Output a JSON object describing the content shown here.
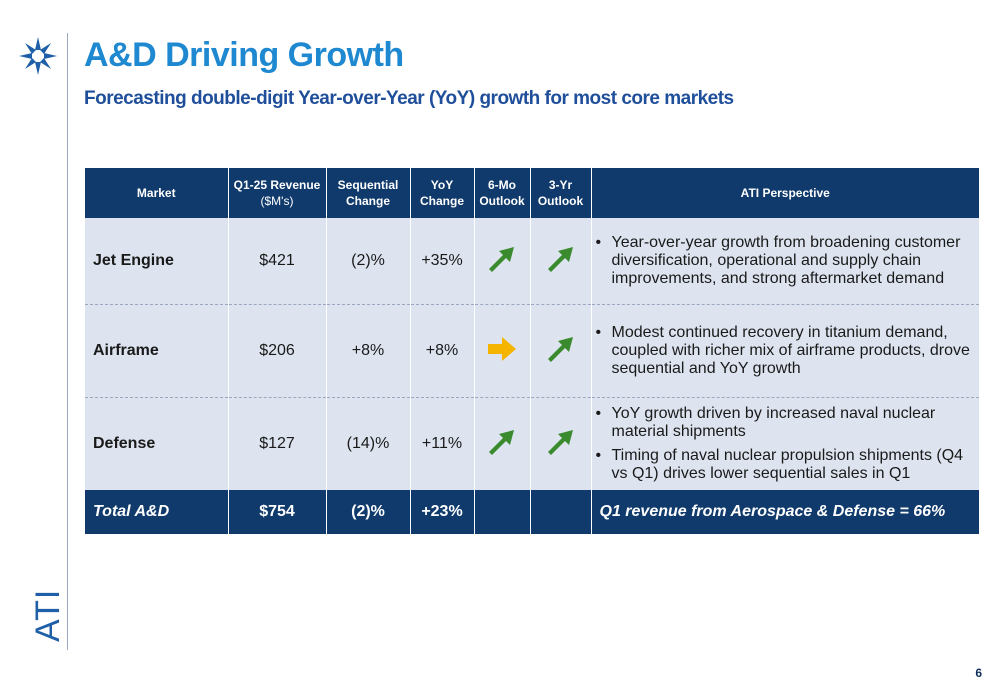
{
  "header": {
    "title": "A&D Driving Growth",
    "subtitle": "Forecasting double-digit Year-over-Year (YoY) growth for most core markets"
  },
  "branding": {
    "logo": "ATI",
    "accent": "#1e88d0",
    "navy": "#0f3a6b"
  },
  "table": {
    "headers": {
      "market": "Market",
      "revenue": "Q1-25 Revenue",
      "revenue_unit": "($M's)",
      "sequential_1": "Sequential",
      "sequential_2": "Change",
      "yoy_1": "YoY",
      "yoy_2": "Change",
      "six_mo_1": "6-Mo",
      "six_mo_2": "Outlook",
      "three_yr_1": "3-Yr",
      "three_yr_2": "Outlook",
      "perspective": "ATI Perspective"
    },
    "rows": [
      {
        "market": "Jet Engine",
        "revenue": "$421",
        "sequential": "(2)%",
        "yoy": "+35%",
        "six_mo_outlook": "up-right-arrow",
        "three_yr_outlook": "up-right-arrow",
        "perspective": [
          "Year-over-year growth from broadening customer diversification, operational and supply chain improvements, and strong aftermarket demand"
        ]
      },
      {
        "market": "Airframe",
        "revenue": "$206",
        "sequential": "+8%",
        "yoy": "+8%",
        "six_mo_outlook": "right-arrow",
        "three_yr_outlook": "up-right-arrow",
        "perspective": [
          "Modest continued recovery in titanium demand, coupled with richer mix of airframe products, drove sequential and YoY growth"
        ]
      },
      {
        "market": "Defense",
        "revenue": "$127",
        "sequential": "(14)%",
        "yoy": "+11%",
        "six_mo_outlook": "up-right-arrow",
        "three_yr_outlook": "up-right-arrow",
        "perspective": [
          "YoY growth driven by increased naval nuclear material shipments",
          "Timing of naval nuclear propulsion shipments (Q4 vs Q1) drives lower sequential sales in Q1"
        ]
      }
    ],
    "total": {
      "market": "Total A&D",
      "revenue": "$754",
      "sequential": "(2)%",
      "yoy": "+23%",
      "note": "Q1 revenue from Aerospace & Defense = 66%"
    },
    "colors": {
      "up": "#3a8a2e",
      "flat": "#f5b400"
    }
  },
  "footer": {
    "page_number": "6"
  }
}
